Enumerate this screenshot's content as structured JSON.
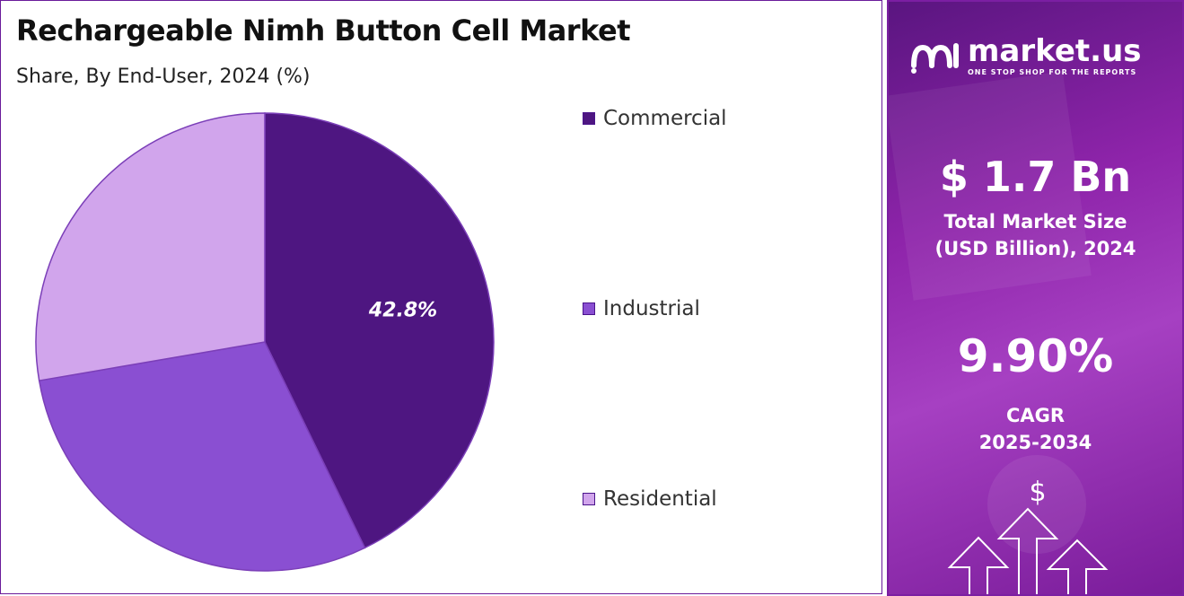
{
  "chart_data": {
    "type": "pie",
    "title": "Rechargeable Nimh Button Cell Market",
    "subtitle": "Share, By End-User, 2024 (%)",
    "categories": [
      "Commercial",
      "Industrial",
      "Residential"
    ],
    "values": [
      42.8,
      29.5,
      27.7
    ],
    "data_labels": [
      "42.8%",
      "",
      ""
    ],
    "colors": [
      "#4e1681",
      "#8a4fd2",
      "#d1a5ec"
    ],
    "legend_placement": "right"
  },
  "sidebar": {
    "brand": "market.us",
    "tagline": "ONE STOP SHOP FOR THE REPORTS",
    "market_size_value": "$ 1.7 Bn",
    "market_size_label_1": "Total Market Size",
    "market_size_label_2": "(USD Billion), 2024",
    "cagr_value": "9.90%",
    "cagr_label": "CAGR",
    "cagr_period": "2025-2034",
    "icon": "dollar-growth-arrows-icon"
  }
}
